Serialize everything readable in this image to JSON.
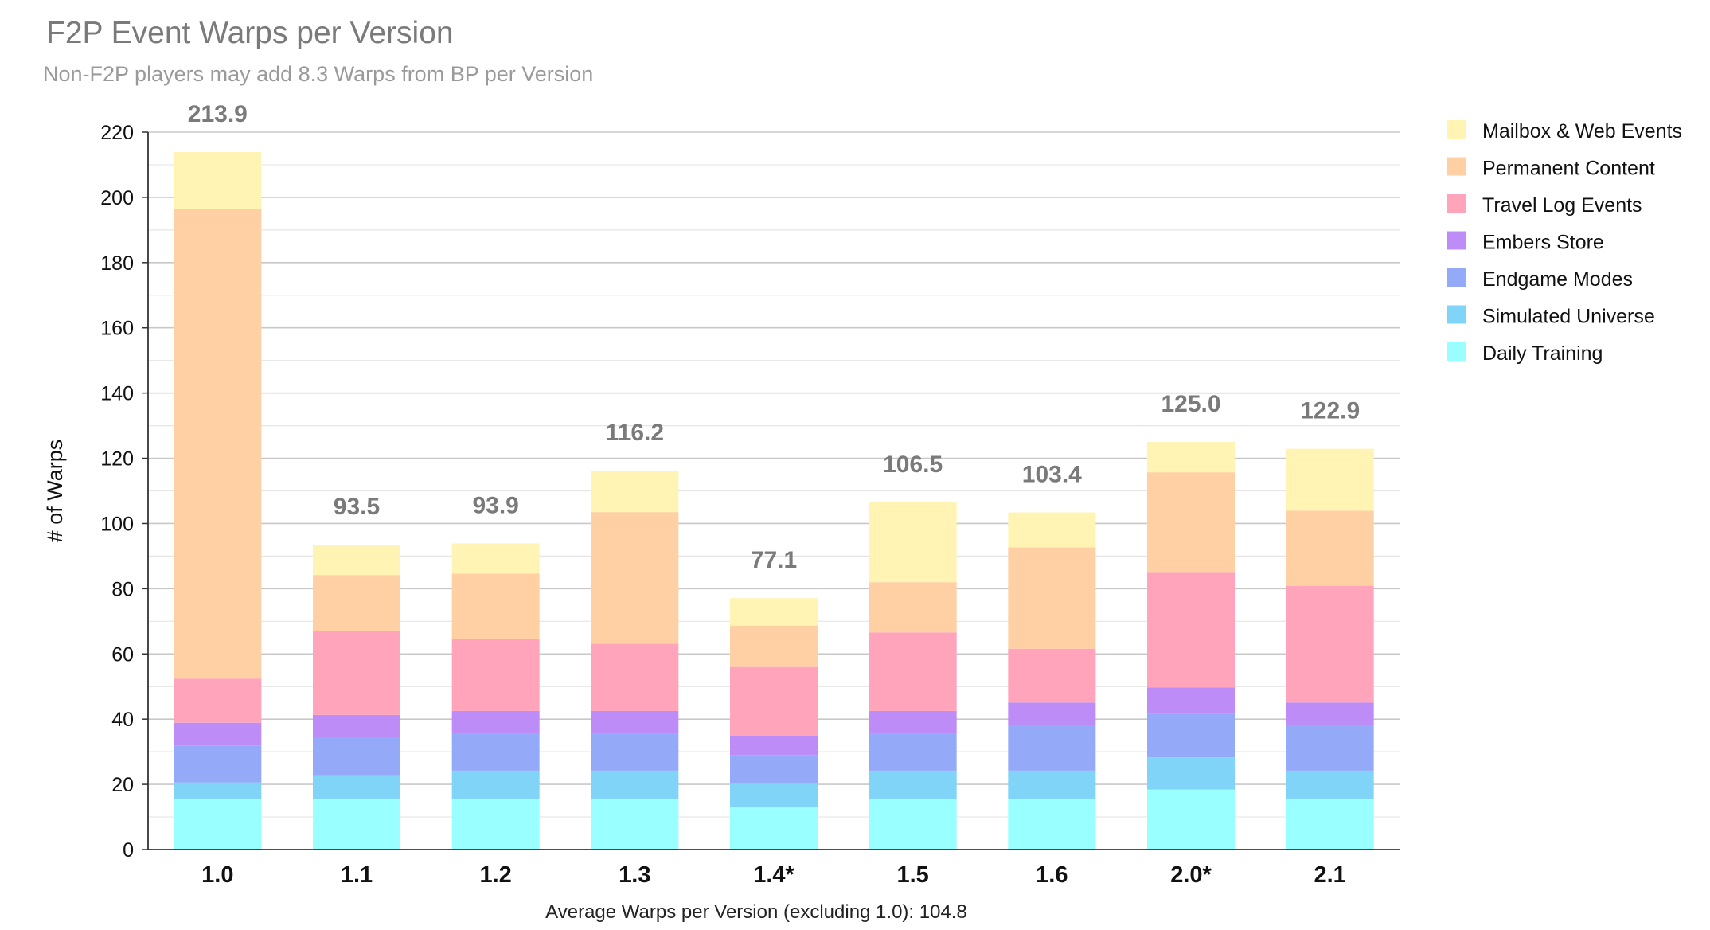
{
  "title": "F2P Event Warps per Version",
  "subtitle": "Non-F2P players may add 8.3 Warps from BP per Version",
  "footer": "Average Warps per Version (excluding 1.0): 104.8",
  "chart_data": {
    "type": "bar",
    "stacked": true,
    "ylabel": "# of Warps",
    "xlabel": "",
    "ylim": [
      0,
      220
    ],
    "yticks": [
      0,
      20,
      40,
      60,
      80,
      100,
      120,
      140,
      160,
      180,
      200,
      220
    ],
    "grid": true,
    "legend_position": "top-right",
    "categories": [
      "1.0",
      "1.1",
      "1.2",
      "1.3",
      "1.4*",
      "1.5",
      "1.6",
      "2.0*",
      "2.1"
    ],
    "totals": [
      "213.9",
      "93.5",
      "93.9",
      "116.2",
      "77.1",
      "106.5",
      "103.4",
      "125.0",
      "122.9"
    ],
    "series": [
      {
        "name": "Daily Training",
        "color": "#99FFFF",
        "values": [
          15.6,
          15.6,
          15.6,
          15.6,
          12.9,
          15.6,
          15.6,
          18.4,
          15.6
        ]
      },
      {
        "name": "Simulated Universe",
        "color": "#7FD4F7",
        "values": [
          5.0,
          7.2,
          8.6,
          8.6,
          7.3,
          8.6,
          8.6,
          9.9,
          8.6
        ]
      },
      {
        "name": "Endgame Modes",
        "color": "#94A9F7",
        "values": [
          11.3,
          11.5,
          11.3,
          11.3,
          8.8,
          11.3,
          13.9,
          13.4,
          13.9
        ]
      },
      {
        "name": "Embers Store",
        "color": "#BD8CF7",
        "values": [
          7.0,
          7.0,
          7.0,
          7.0,
          6.0,
          7.0,
          7.0,
          8.0,
          7.0
        ]
      },
      {
        "name": "Travel Log Events",
        "color": "#FFA4BB",
        "values": [
          13.5,
          25.7,
          22.2,
          20.6,
          21.0,
          24.1,
          16.5,
          35.2,
          35.8
        ]
      },
      {
        "name": "Permanent Content",
        "color": "#FFD0A4",
        "values": [
          144.0,
          17.2,
          19.9,
          40.4,
          12.7,
          15.4,
          31.1,
          30.8,
          23.0
        ]
      },
      {
        "name": "Mailbox & Web Events",
        "color": "#FFF4B4",
        "values": [
          17.5,
          9.3,
          9.3,
          12.7,
          8.4,
          24.5,
          10.7,
          9.3,
          19.0
        ]
      }
    ]
  }
}
